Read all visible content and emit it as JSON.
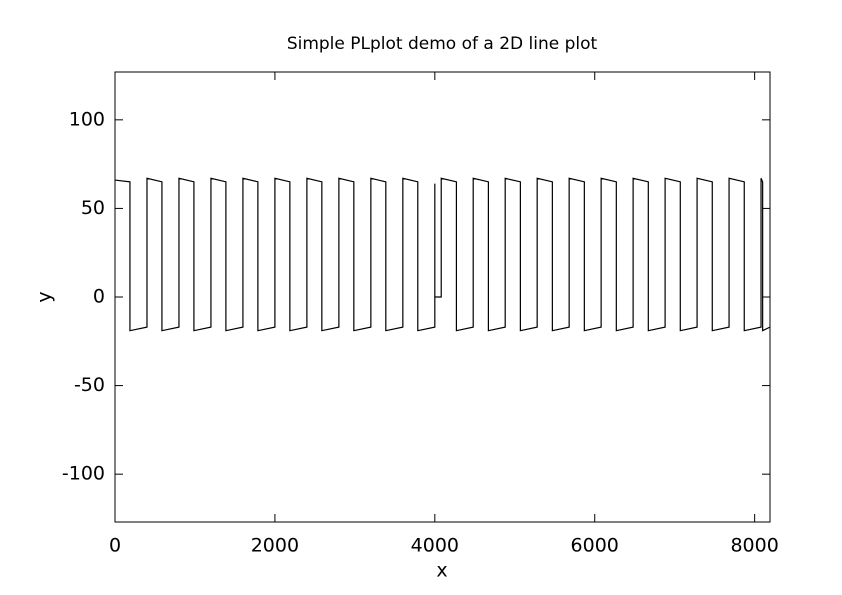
{
  "chart_data": {
    "type": "line",
    "title": "Simple PLplot demo of a 2D line plot",
    "x_label": "x",
    "y_label": "y",
    "xlim": [
      0,
      8192
    ],
    "ylim": [
      -127,
      127
    ],
    "xticks": [
      0,
      2000,
      4000,
      6000,
      8000
    ],
    "yticks": [
      -100,
      -50,
      0,
      50,
      100
    ],
    "series": [
      {
        "color": "#000000",
        "x": [
          0,
          187,
          187,
          400,
          400,
          587,
          587,
          800,
          800,
          987,
          987,
          1200,
          1200,
          1387,
          1387,
          1600,
          1600,
          1787,
          1787,
          2000,
          2000,
          2187,
          2187,
          2400,
          2400,
          2587,
          2587,
          2800,
          2800,
          2987,
          2987,
          3200,
          3200,
          3387,
          3387,
          3600,
          3600,
          3787,
          3787,
          4000,
          4000,
          4000,
          4080,
          4080,
          4270,
          4270,
          4480,
          4480,
          4670,
          4670,
          4880,
          4880,
          5070,
          5070,
          5280,
          5280,
          5470,
          5470,
          5680,
          5680,
          5870,
          5870,
          6080,
          6080,
          6270,
          6270,
          6480,
          6480,
          6670,
          6670,
          6880,
          6880,
          7070,
          7070,
          7280,
          7280,
          7470,
          7470,
          7680,
          7680,
          7870,
          7870,
          8080,
          8080,
          8100,
          8100,
          8191
        ],
        "values": [
          66,
          65,
          -19,
          -17,
          67,
          65,
          -19,
          -17,
          67,
          65,
          -19,
          -17,
          67,
          65,
          -19,
          -17,
          67,
          65,
          -19,
          -17,
          67,
          65,
          -19,
          -17,
          67,
          65,
          -19,
          -17,
          67,
          65,
          -19,
          -17,
          67,
          65,
          -19,
          -17,
          67,
          65,
          -19,
          -17,
          64,
          0,
          0,
          67,
          65,
          -19,
          -17,
          67,
          65,
          -19,
          -17,
          67,
          65,
          -19,
          -17,
          67,
          65,
          -19,
          -17,
          67,
          65,
          -19,
          -17,
          67,
          65,
          -19,
          -17,
          67,
          65,
          -19,
          -17,
          67,
          65,
          -19,
          -17,
          67,
          65,
          -19,
          -17,
          67,
          65,
          -19,
          -17,
          67,
          65,
          -19,
          -17
        ]
      }
    ]
  }
}
